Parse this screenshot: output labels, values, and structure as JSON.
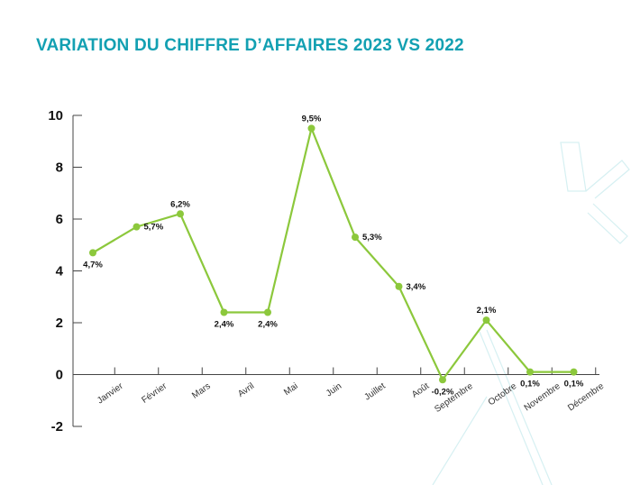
{
  "chart_data": {
    "type": "line",
    "title": "VARIATION DU CHIFFRE D’AFFAIRES 2023 VS 2022",
    "categories": [
      "Janvier",
      "Février",
      "Mars",
      "Avril",
      "Mai",
      "Juin",
      "Juillet",
      "Août",
      "Septembre",
      "Octobre",
      "Novembre",
      "Décembre"
    ],
    "series": [
      {
        "values": [
          4.7,
          5.7,
          6.2,
          2.4,
          2.4,
          9.5,
          5.3,
          3.4,
          -0.2,
          2.1,
          0.1,
          0.1
        ],
        "data_labels": [
          "4,7%",
          "5,7%",
          "6,2%",
          "2,4%",
          "2,4%",
          "9,5%",
          "5,3%",
          "3,4%",
          "-0,2%",
          "2,1%",
          "0,1%",
          "0,1%"
        ],
        "color": "#8cc83c"
      }
    ],
    "ylim": [
      -2,
      10
    ],
    "yticks": [
      -2,
      0,
      2,
      4,
      6,
      8,
      10
    ],
    "xlabel": "",
    "ylabel": "",
    "grid": false,
    "legend": "none"
  },
  "colors": {
    "title": "#13a0b2",
    "line": "#8cc83c",
    "axis": "#444444",
    "watermark": "#d6f0f2"
  }
}
